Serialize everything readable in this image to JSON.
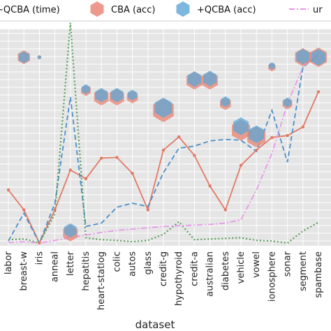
{
  "chart_data": {
    "type": "line",
    "xlabel": "dataset",
    "ylabel": "",
    "categories": [
      "labor",
      "breast-w",
      "iris",
      "anneal",
      "letter",
      "hepatitis",
      "heart-statlog",
      "colic",
      "autos",
      "glass",
      "credit-g",
      "hypothyroid",
      "credit-a",
      "australian",
      "diabetes",
      "vehicle",
      "vowel",
      "ionosphere",
      "sonar",
      "segment",
      "spambase"
    ],
    "ylim": [
      0,
      30
    ],
    "grid": true,
    "legend_position": "top",
    "legend": [
      {
        "label": "+QCBA (time)",
        "marker": "dot",
        "color": "#4c8fc7"
      },
      {
        "label": "CBA (acc)",
        "marker": "hexagon",
        "color": "#e8806f"
      },
      {
        "label": "+QCBA (acc)",
        "marker": "hexagon",
        "color": "#5da5d5"
      },
      {
        "label": "ur",
        "marker": "dashdot",
        "color": "#e898e8"
      }
    ],
    "series": [
      {
        "name": "",
        "style": "solid",
        "color": "#e07a66",
        "values": [
          8.0,
          5.0,
          0.0,
          5.0,
          11.0,
          9.7,
          12.8,
          12.9,
          10.5,
          5.0,
          14.0,
          16.0,
          13.2,
          8.6,
          5.0,
          11.7,
          14.0,
          15.9,
          16.2,
          17.5,
          22.8
        ]
      },
      {
        "name": "",
        "style": "dashed",
        "color": "#4c8fc7",
        "values": [
          0.3,
          4.5,
          0.0,
          6.0,
          22.0,
          2.5,
          3.0,
          5.4,
          6.0,
          5.5,
          10.6,
          14.3,
          14.6,
          15.4,
          15.6,
          15.5,
          13.8,
          20.0,
          12.2,
          26.5,
          28.3
        ]
      },
      {
        "name": "",
        "style": "dotted",
        "color": "#5a9e5a",
        "values": [
          0.5,
          0.6,
          0.0,
          4.4,
          33.2,
          0.8,
          0.5,
          0.4,
          0.2,
          0.4,
          1.3,
          3.2,
          0.5,
          0.6,
          0.7,
          0.8,
          0.4,
          0.3,
          0.0,
          1.8,
          3.1
        ]
      },
      {
        "name": "",
        "style": "dashdot",
        "color": "#e898e8",
        "values": [
          0.1,
          0.2,
          0.0,
          0.4,
          0.8,
          1.2,
          1.6,
          1.9,
          2.1,
          2.3,
          2.5,
          2.6,
          2.7,
          2.8,
          3.0,
          3.5,
          8.0,
          13.5,
          21.0,
          26.5,
          28.5
        ]
      },
      {
        "name": "",
        "style": "hexagon",
        "color": "#e8806f",
        "values": [
          null,
          28.0,
          28.0,
          null,
          1.5,
          23.0,
          22.0,
          22.0,
          22.0,
          null,
          20.0,
          null,
          24.5,
          24.5,
          21.0,
          17.0,
          16.0,
          26.5,
          21.0,
          28.0,
          28.0
        ]
      },
      {
        "name": "",
        "style": "hexagon",
        "color": "#5da5d5",
        "values": [
          null,
          28.0,
          28.0,
          null,
          1.9,
          23.2,
          22.3,
          22.3,
          22.3,
          null,
          20.4,
          null,
          24.7,
          24.8,
          21.3,
          17.6,
          16.4,
          26.7,
          21.2,
          28.1,
          28.0
        ]
      }
    ]
  }
}
